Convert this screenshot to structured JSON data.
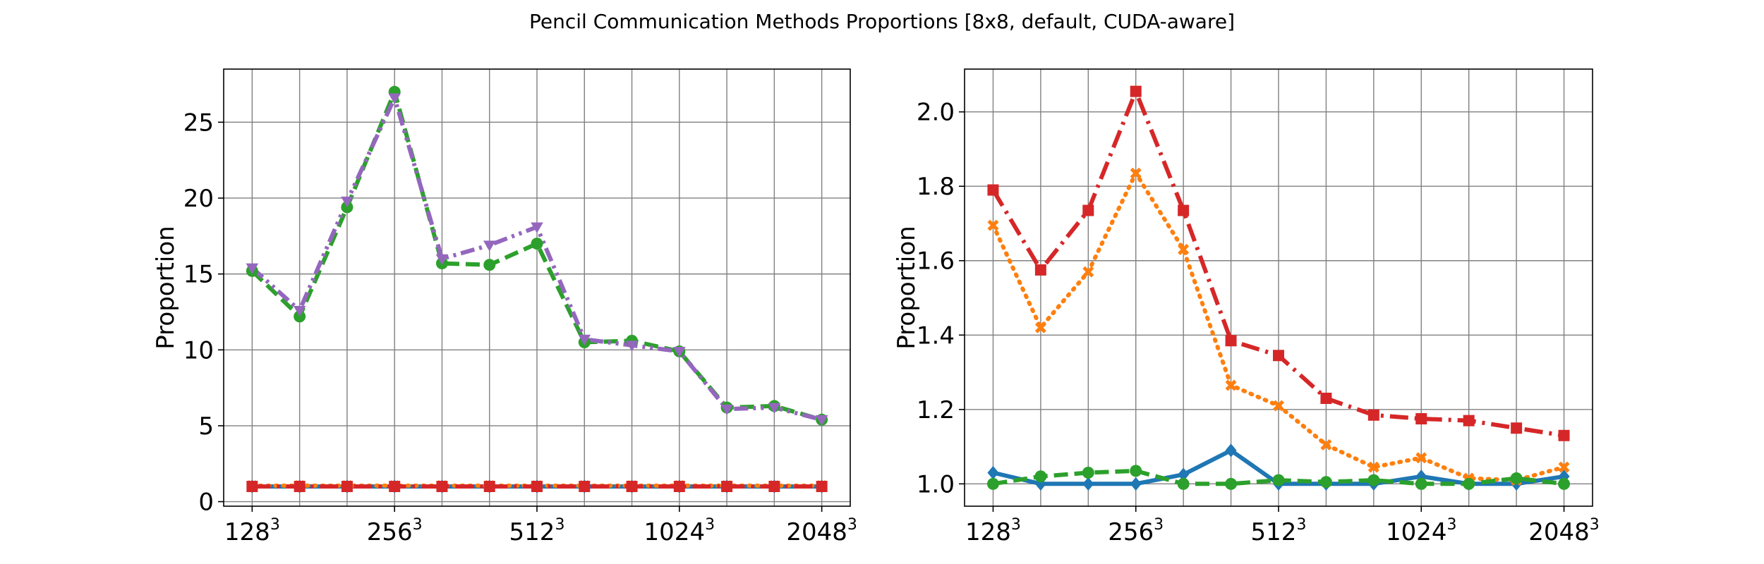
{
  "figure_title": "Pencil Communication Methods Proportions [8x8, default, CUDA-aware]",
  "chart_data": [
    {
      "type": "line",
      "ylabel": "Proportion",
      "xlabel": "",
      "x": [
        0,
        1,
        2,
        3,
        4,
        5,
        6,
        7,
        8,
        9,
        10,
        11,
        12
      ],
      "xticks": [
        0,
        3,
        6,
        9,
        12
      ],
      "xtick_bases": [
        "128",
        "256",
        "512",
        "1024",
        "2048"
      ],
      "xtick_exp": "3",
      "ylim": [
        -0.3,
        28.5
      ],
      "yticks": [
        0,
        5,
        10,
        15,
        20,
        25
      ],
      "xlim": [
        -0.6,
        12.6
      ],
      "grid": true,
      "series": [
        {
          "color": "#1f77b4",
          "dash": "solid",
          "marker": "diamond",
          "values": [
            1.0,
            1.0,
            1.0,
            1.0,
            1.0,
            1.0,
            1.0,
            1.0,
            1.0,
            1.0,
            1.0,
            1.0,
            1.0
          ]
        },
        {
          "color": "#ff7f0e",
          "dash": "dotted",
          "marker": "x",
          "values": [
            1.05,
            1.05,
            1.05,
            1.05,
            1.05,
            1.05,
            1.05,
            1.05,
            1.05,
            1.05,
            1.05,
            1.05,
            1.05
          ]
        },
        {
          "color": "#2ca02c",
          "dash": "dashed",
          "marker": "circle",
          "values": [
            15.2,
            12.2,
            19.4,
            27.0,
            15.7,
            15.6,
            17.0,
            10.5,
            10.6,
            9.9,
            6.2,
            6.3,
            5.4
          ]
        },
        {
          "color": "#d62728",
          "dash": "dashdot",
          "marker": "square",
          "values": [
            1.0,
            1.0,
            1.0,
            1.0,
            1.0,
            1.0,
            1.0,
            1.0,
            1.0,
            1.0,
            1.0,
            1.0,
            1.0
          ]
        },
        {
          "color": "#9467bd",
          "dash": "dashdotdot",
          "marker": "triangle-down",
          "values": [
            15.4,
            12.6,
            19.8,
            26.6,
            16.0,
            16.9,
            18.1,
            10.7,
            10.3,
            9.9,
            6.1,
            6.2,
            5.4
          ]
        }
      ]
    },
    {
      "type": "line",
      "ylabel": "Proportion",
      "xlabel": "",
      "x": [
        0,
        1,
        2,
        3,
        4,
        5,
        6,
        7,
        8,
        9,
        10,
        11,
        12
      ],
      "xticks": [
        0,
        3,
        6,
        9,
        12
      ],
      "xtick_bases": [
        "128",
        "256",
        "512",
        "1024",
        "2048"
      ],
      "xtick_exp": "3",
      "ylim": [
        0.94,
        2.115
      ],
      "yticks": [
        1.0,
        1.2,
        1.4,
        1.6,
        1.8,
        2.0
      ],
      "xlim": [
        -0.6,
        12.6
      ],
      "grid": true,
      "series": [
        {
          "color": "#1f77b4",
          "dash": "solid",
          "marker": "diamond",
          "values": [
            1.03,
            1.0,
            1.0,
            1.0,
            1.025,
            1.09,
            1.0,
            1.0,
            1.0,
            1.02,
            1.0,
            1.0,
            1.02
          ]
        },
        {
          "color": "#ff7f0e",
          "dash": "dotted",
          "marker": "x",
          "values": [
            1.695,
            1.42,
            1.57,
            1.835,
            1.63,
            1.265,
            1.21,
            1.105,
            1.045,
            1.07,
            1.015,
            1.01,
            1.045
          ]
        },
        {
          "color": "#2ca02c",
          "dash": "dashed",
          "marker": "circle",
          "values": [
            1.0,
            1.02,
            1.03,
            1.035,
            1.0,
            1.0,
            1.01,
            1.005,
            1.01,
            1.0,
            1.0,
            1.015,
            1.0
          ]
        },
        {
          "color": "#d62728",
          "dash": "dashdot",
          "marker": "square",
          "values": [
            1.79,
            1.575,
            1.735,
            2.055,
            1.735,
            1.385,
            1.345,
            1.23,
            1.185,
            1.175,
            1.17,
            1.15,
            1.13
          ]
        }
      ]
    }
  ]
}
